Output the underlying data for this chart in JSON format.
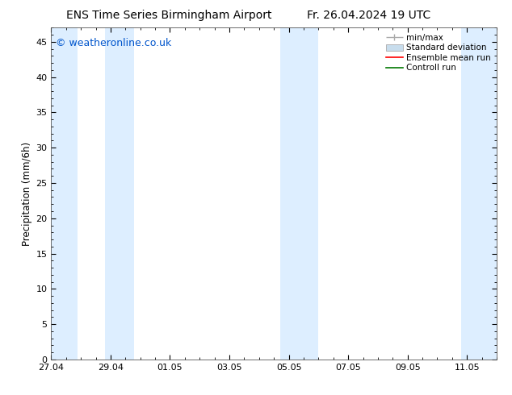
{
  "title_left": "ENS Time Series Birmingham Airport",
  "title_right": "Fr. 26.04.2024 19 UTC",
  "ylabel": "Precipitation (mm/6h)",
  "watermark": "© weatheronline.co.uk",
  "watermark_color": "#0055cc",
  "background_color": "#ffffff",
  "plot_bg_color": "#ffffff",
  "ylim": [
    0,
    47
  ],
  "yticks": [
    0,
    5,
    10,
    15,
    20,
    25,
    30,
    35,
    40,
    45
  ],
  "xlim_days": [
    0,
    15
  ],
  "xtick_labels": [
    "27.04",
    "29.04",
    "01.05",
    "03.05",
    "05.05",
    "07.05",
    "09.05",
    "11.05"
  ],
  "xtick_positions_days": [
    0,
    2,
    4,
    6,
    8,
    10,
    12,
    14
  ],
  "shaded_bands": [
    {
      "x_start_day": 0.0,
      "x_end_day": 0.9,
      "color": "#ddeeff"
    },
    {
      "x_start_day": 1.8,
      "x_end_day": 2.8,
      "color": "#ddeeff"
    },
    {
      "x_start_day": 7.7,
      "x_end_day": 9.0,
      "color": "#ddeeff"
    },
    {
      "x_start_day": 13.8,
      "x_end_day": 15.0,
      "color": "#ddeeff"
    }
  ],
  "legend_items": [
    {
      "label": "min/max",
      "color_line": "#aaaaaa",
      "color_fill": null
    },
    {
      "label": "Standard deviation",
      "color_line": "#aaaaaa",
      "color_fill": "#c8dded"
    },
    {
      "label": "Ensemble mean run",
      "color_line": "#ff0000",
      "color_fill": null
    },
    {
      "label": "Controll run",
      "color_line": "#007700",
      "color_fill": null
    }
  ],
  "title_fontsize": 10,
  "tick_fontsize": 8,
  "legend_fontsize": 7.5,
  "ylabel_fontsize": 8.5,
  "watermark_fontsize": 9
}
